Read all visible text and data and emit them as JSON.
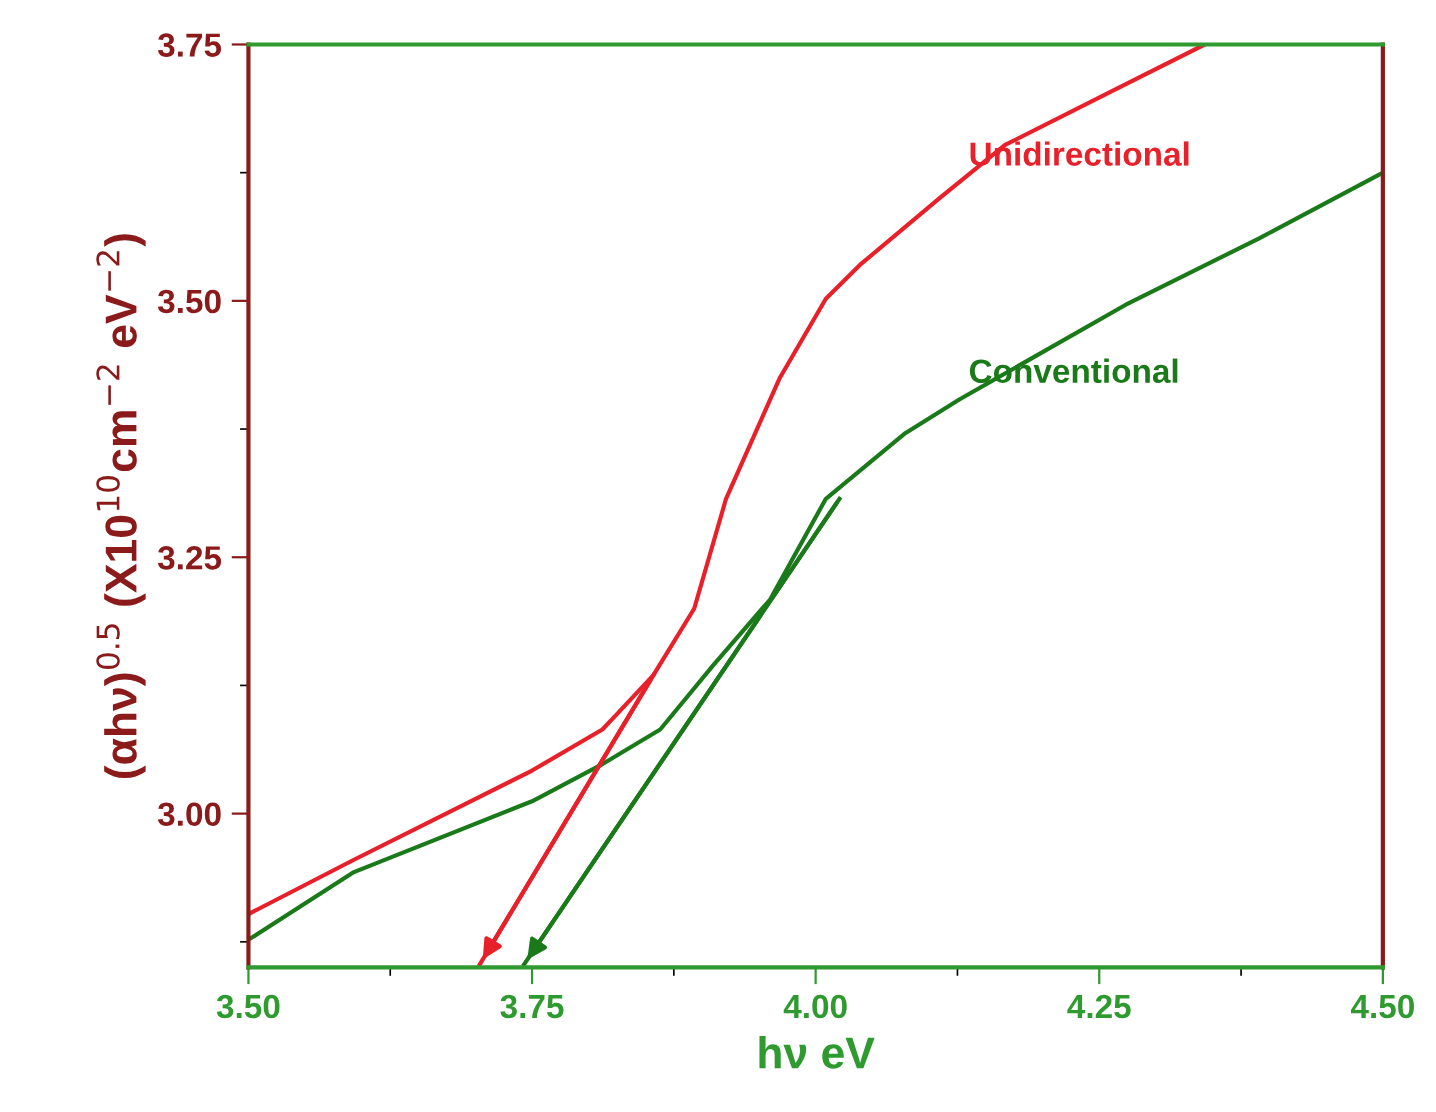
{
  "chart_data": {
    "type": "line",
    "xlabel": "hν eV",
    "ylabel": "(αhν)$^{0.5}$ (X10$^{10}$cm$^{−2}$ eV$^{−2}$)",
    "xlim": [
      3.5,
      4.5
    ],
    "xticks": [
      {
        "value": 3.5,
        "label": "3.50"
      },
      {
        "value": 3.75,
        "label": "3.75"
      },
      {
        "value": 4.0,
        "label": "4.00"
      },
      {
        "value": 4.25,
        "label": "4.25"
      },
      {
        "value": 4.5,
        "label": "4.50"
      }
    ],
    "ylim": [
      2.85,
      3.75
    ],
    "yticks": [
      {
        "value": 3.0,
        "label": "3.00"
      },
      {
        "value": 3.25,
        "label": "3.25"
      },
      {
        "value": 3.5,
        "label": "3.50"
      },
      {
        "value": 3.75,
        "label": "3.75"
      }
    ],
    "grid": false,
    "legend": false,
    "marker": "none",
    "line_style": "solid",
    "series": [
      {
        "name": "Unidirectional",
        "color": "#e8202a",
        "x": [
          3.5,
          3.593,
          3.75,
          3.812,
          3.824,
          3.857,
          3.893,
          3.921,
          3.968,
          4.009,
          4.039,
          4.109,
          4.167,
          4.273,
          4.343
        ],
        "values": [
          2.902,
          2.955,
          3.042,
          3.082,
          3.096,
          3.135,
          3.2,
          3.307,
          3.424,
          3.502,
          3.535,
          3.6,
          3.652,
          3.711,
          3.75
        ]
      },
      {
        "name": "Conventional",
        "color": "#1a7a1a",
        "x": [
          3.5,
          3.593,
          3.75,
          3.81,
          3.863,
          3.91,
          3.96,
          4.009,
          4.079,
          4.127,
          4.273,
          4.391,
          4.5
        ],
        "values": [
          2.877,
          2.943,
          3.012,
          3.047,
          3.082,
          3.145,
          3.209,
          3.307,
          3.371,
          3.404,
          3.496,
          3.561,
          3.625
        ]
      },
      {
        "color": "#e8202a",
        "x": [
          3.857,
          3.704
        ],
        "values": [
          3.135,
          2.853
        ]
      },
      {
        "color": "#1a7a1a",
        "x": [
          4.021,
          3.743
        ],
        "values": [
          3.307,
          2.853
        ]
      }
    ]
  }
}
